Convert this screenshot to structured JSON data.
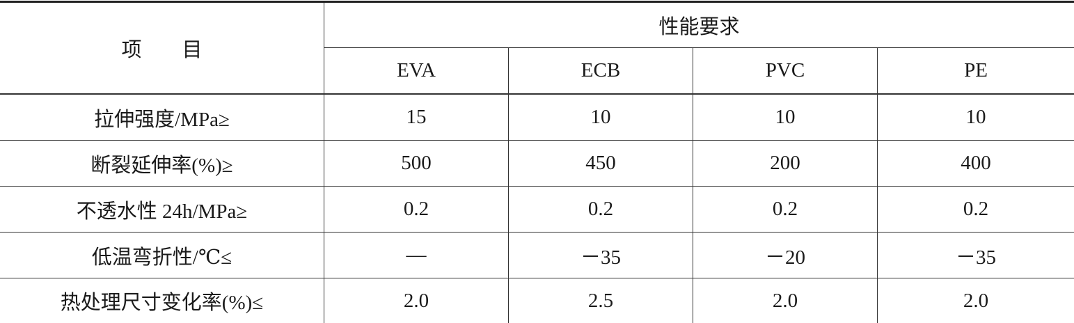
{
  "header": {
    "item_label": "项　　目",
    "group_label": "性能要求",
    "columns": [
      "EVA",
      "ECB",
      "PVC",
      "PE"
    ]
  },
  "rows": [
    {
      "label": "拉伸强度/MPa≥",
      "values": [
        "15",
        "10",
        "10",
        "10"
      ]
    },
    {
      "label": "断裂延伸率(%)≥",
      "values": [
        "500",
        "450",
        "200",
        "400"
      ]
    },
    {
      "label": "不透水性 24h/MPa≥",
      "values": [
        "0.2",
        "0.2",
        "0.2",
        "0.2"
      ]
    },
    {
      "label": "低温弯折性/℃≤",
      "values": [
        "—",
        "－35",
        "－20",
        "－35"
      ]
    },
    {
      "label": "热处理尺寸变化率(%)≤",
      "values": [
        "2.0",
        "2.5",
        "2.0",
        "2.0"
      ]
    }
  ]
}
